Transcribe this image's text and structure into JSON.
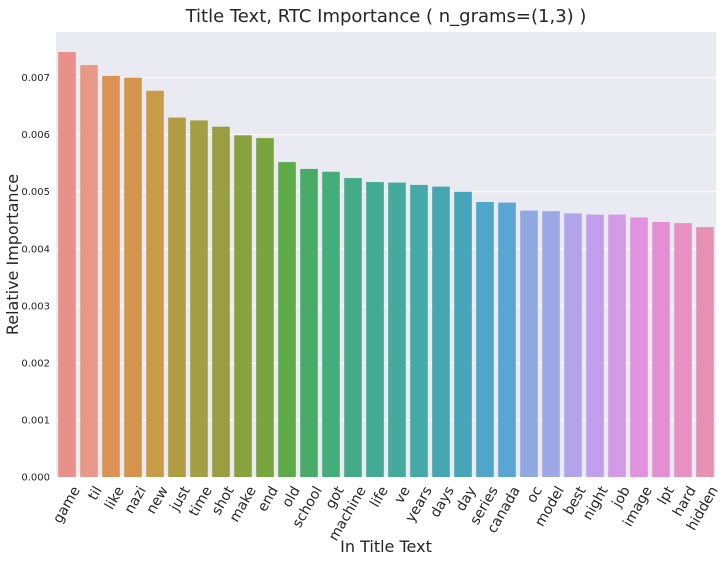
{
  "chart_data": {
    "type": "bar",
    "title": "Title Text, RTC Importance ( n_grams=(1,3) )",
    "xlabel": "In Title Text",
    "ylabel": "Relative Importance",
    "ylim": [
      0,
      0.0078
    ],
    "yticks": [
      "0.000",
      "0.001",
      "0.002",
      "0.003",
      "0.004",
      "0.005",
      "0.006",
      "0.007"
    ],
    "grid": true,
    "categories": [
      "game",
      "til",
      "like",
      "nazi",
      "new",
      "just",
      "time",
      "shot",
      "make",
      "end",
      "old",
      "school",
      "got",
      "machine",
      "life",
      "ve",
      "years",
      "days",
      "day",
      "series",
      "canada",
      "oc",
      "model",
      "best",
      "night",
      "job",
      "image",
      "lpt",
      "hard",
      "hidden"
    ],
    "values": [
      0.00745,
      0.00722,
      0.00703,
      0.007,
      0.00677,
      0.0063,
      0.00625,
      0.00614,
      0.00599,
      0.00594,
      0.00552,
      0.0054,
      0.00535,
      0.00524,
      0.00517,
      0.00516,
      0.00512,
      0.00509,
      0.005,
      0.00482,
      0.00481,
      0.00467,
      0.00466,
      0.00462,
      0.0046,
      0.0046,
      0.00455,
      0.00447,
      0.00445,
      0.00438
    ],
    "colors": [
      "#e8918b",
      "#e89886",
      "#de9155",
      "#d4944c",
      "#c89c46",
      "#b09c42",
      "#a39e43",
      "#999e42",
      "#8aa140",
      "#79a53e",
      "#5daa48",
      "#4aab68",
      "#45ad7a",
      "#44ab88",
      "#43aa94",
      "#44aa9e",
      "#45a9a8",
      "#46a7b0",
      "#48a6ba",
      "#4ea6c8",
      "#5aa5d2",
      "#8fa8e0",
      "#9fa8e6",
      "#b2a4ea",
      "#c19fec",
      "#d39ae8",
      "#e291df",
      "#e58fd2",
      "#e690c4",
      "#e690b6"
    ]
  }
}
